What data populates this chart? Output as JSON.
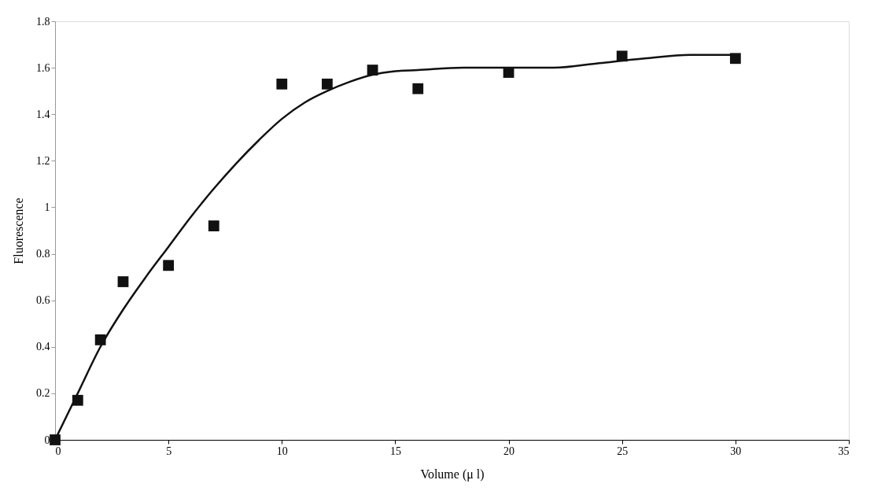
{
  "chart_data": {
    "type": "scatter",
    "xlabel": "Volume (μ l)",
    "ylabel": "Fluorescence",
    "xlim": [
      0,
      35
    ],
    "xticks": [
      0,
      5,
      10,
      15,
      20,
      25,
      30,
      35
    ],
    "ylim": [
      0,
      1.8
    ],
    "yticks": [
      0,
      0.2,
      0.4,
      0.6,
      0.8,
      1,
      1.2,
      1.4,
      1.6,
      1.8
    ],
    "grid": false,
    "marker": "square",
    "series": [
      {
        "color": "#111111",
        "x": [
          0,
          1,
          2,
          3,
          5,
          7,
          10,
          12,
          14,
          16,
          20,
          25,
          30
        ],
        "values": [
          0,
          0.17,
          0.43,
          0.68,
          0.75,
          0.92,
          1.53,
          1.53,
          1.59,
          1.51,
          1.58,
          1.65,
          1.64
        ]
      },
      {
        "type": "line",
        "color": "#111111",
        "line_style": "solid",
        "marker": "none",
        "x": [
          0,
          1,
          2,
          3,
          4,
          5,
          6,
          7,
          8,
          9,
          10,
          11,
          12,
          13,
          14,
          15,
          16,
          18,
          20,
          22,
          24,
          26,
          28,
          30
        ],
        "values": [
          0,
          0.2,
          0.4,
          0.56,
          0.7,
          0.83,
          0.96,
          1.08,
          1.19,
          1.29,
          1.38,
          1.45,
          1.5,
          1.54,
          1.57,
          1.585,
          1.59,
          1.6,
          1.6,
          1.6,
          1.62,
          1.64,
          1.655,
          1.655
        ]
      }
    ]
  }
}
